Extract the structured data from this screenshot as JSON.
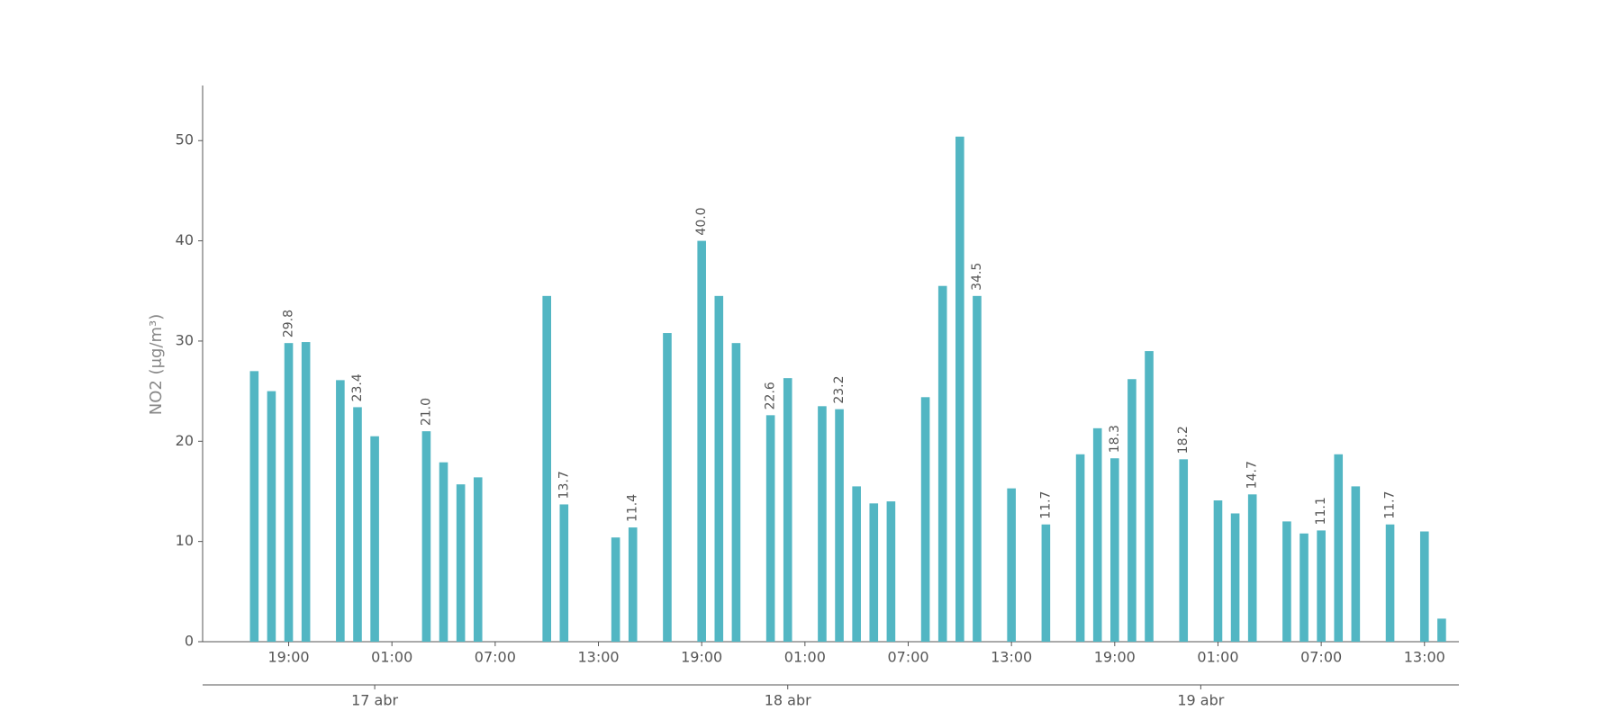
{
  "chart_data": {
    "type": "bar",
    "y_label": "NO2 (μg/m³)",
    "categories": [
      null,
      null,
      null,
      null,
      "19:00",
      null,
      null,
      null,
      null,
      null,
      "01:00",
      null,
      null,
      null,
      null,
      null,
      "07:00",
      null,
      null,
      null,
      null,
      null,
      "13:00",
      null,
      null,
      null,
      null,
      null,
      "19:00",
      null,
      null,
      null,
      null,
      null,
      "01:00",
      null,
      null,
      null,
      null,
      null,
      "07:00",
      null,
      null,
      null,
      null,
      null,
      "13:00",
      null,
      null,
      null,
      null,
      null,
      "19:00",
      null,
      null,
      null,
      null,
      null,
      "01:00",
      null,
      null,
      null,
      null,
      null,
      "07:00",
      null,
      null,
      null,
      null,
      null,
      "13:00",
      null,
      null
    ],
    "values": [
      null,
      null,
      27.0,
      25.0,
      29.8,
      29.9,
      null,
      26.1,
      23.4,
      20.5,
      null,
      null,
      21.0,
      17.9,
      15.7,
      16.4,
      null,
      null,
      null,
      34.5,
      13.7,
      null,
      null,
      10.4,
      11.4,
      null,
      30.8,
      null,
      40.0,
      34.5,
      29.8,
      null,
      22.6,
      26.3,
      null,
      23.5,
      23.2,
      15.5,
      13.8,
      14.0,
      null,
      24.4,
      35.5,
      50.4,
      34.5,
      null,
      15.3,
      null,
      11.7,
      null,
      18.7,
      21.3,
      18.3,
      26.2,
      29.0,
      null,
      18.2,
      null,
      14.1,
      12.8,
      14.7,
      null,
      12.0,
      10.8,
      11.1,
      18.7,
      15.5,
      null,
      11.7,
      null,
      11.0,
      2.3,
      null
    ],
    "value_labels": [
      null,
      null,
      null,
      null,
      "29.8",
      null,
      null,
      null,
      "23.4",
      null,
      null,
      null,
      "21.0",
      null,
      null,
      null,
      null,
      null,
      null,
      null,
      "13.7",
      null,
      null,
      null,
      "11.4",
      null,
      null,
      null,
      "40.0",
      null,
      null,
      null,
      "22.6",
      null,
      null,
      null,
      "23.2",
      null,
      null,
      null,
      null,
      null,
      null,
      null,
      "34.5",
      null,
      null,
      null,
      "11.7",
      null,
      null,
      null,
      "18.3",
      null,
      null,
      null,
      "18.2",
      null,
      null,
      null,
      "14.7",
      null,
      null,
      null,
      "11.1",
      null,
      null,
      null,
      "11.7",
      null,
      null,
      null,
      null
    ],
    "date_labels": [
      "17 abr",
      "18 abr",
      "19 abr"
    ],
    "color": "#52b6c3",
    "ylim": [
      0,
      55.5
    ],
    "yticks": [
      0,
      10,
      20,
      30,
      40,
      50
    ]
  }
}
